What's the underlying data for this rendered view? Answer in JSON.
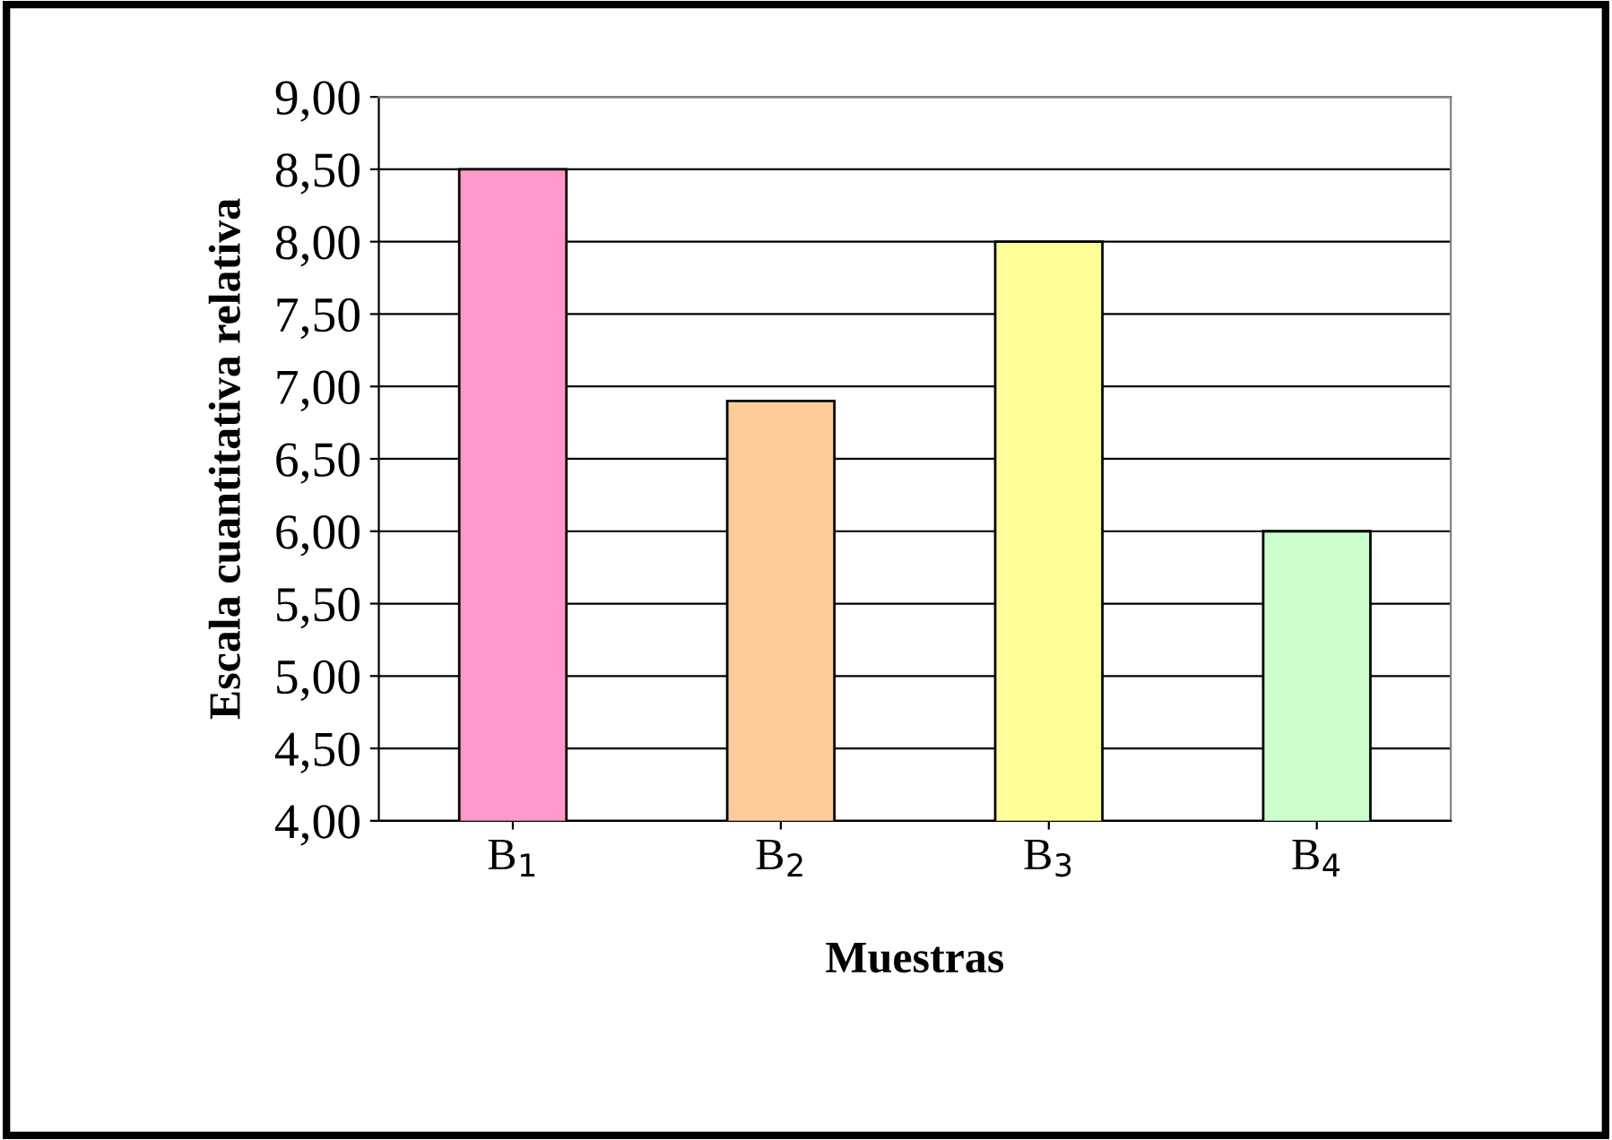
{
  "chart_data": {
    "type": "bar",
    "xlabel": "Muestras",
    "ylabel": "Escala cuantitativa relativa",
    "categories": [
      "B$_{1}$",
      "B$_{2}$",
      "B$_{3}$",
      "B$_{4}$"
    ],
    "values": [
      8.5,
      6.9,
      8.0,
      6.0
    ],
    "colors": [
      "#ff99cc",
      "#ffcc99",
      "#ffff99",
      "#ccffcc"
    ],
    "ylim": [
      4,
      9
    ],
    "yticks": [
      {
        "value": 4,
        "label": "4,00"
      },
      {
        "value": 4.5,
        "label": "4,50"
      },
      {
        "value": 5,
        "label": "5,00"
      },
      {
        "value": 5.5,
        "label": "5,50"
      },
      {
        "value": 6,
        "label": "6,00"
      },
      {
        "value": 6.5,
        "label": "6,50"
      },
      {
        "value": 7,
        "label": "7,00"
      },
      {
        "value": 7.5,
        "label": "7,50"
      },
      {
        "value": 8,
        "label": "8,00"
      },
      {
        "value": 8.5,
        "label": "8,50"
      },
      {
        "value": 9,
        "label": "9,00"
      }
    ],
    "grid": "y"
  }
}
